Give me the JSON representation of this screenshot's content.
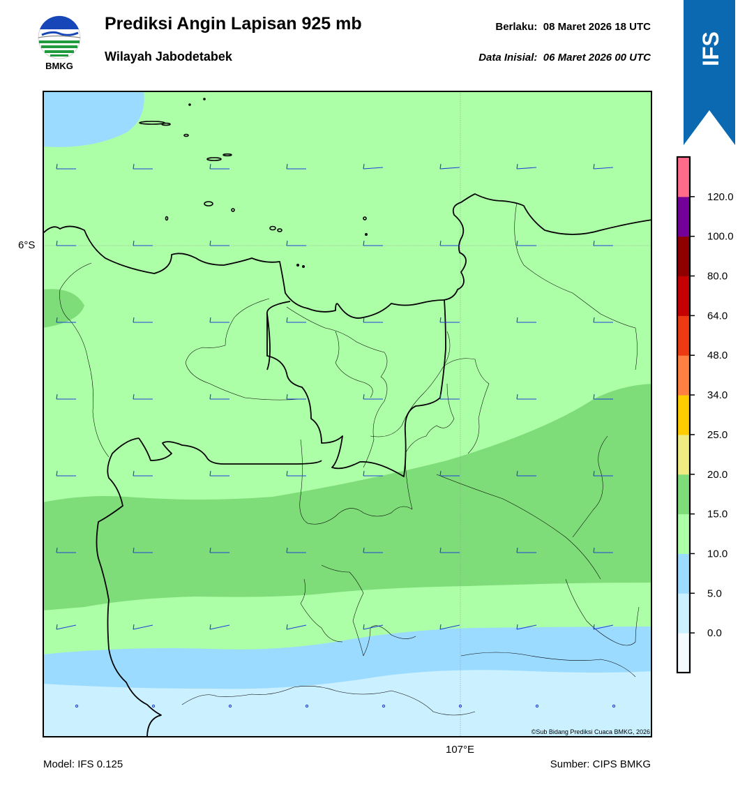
{
  "header": {
    "title": "Prediksi Angin Lapisan 925 mb",
    "subtitle": "Wilayah Jabodetabek",
    "valid_label": "Berlaku:",
    "valid_value": "08 Maret 2026 18 UTC",
    "init_label": "Data Inisial:",
    "init_value": "06 Maret 2026 00 UTC"
  },
  "logo": {
    "icon": "bmkg-logo-icon",
    "text": "BMKG"
  },
  "ribbon": {
    "text": "IFS",
    "color": "#0a69b0"
  },
  "map": {
    "lat_label": "6°S",
    "lon_label": "107°E",
    "copyright": "©Sub Bidang Prediksi Cuaca BMKG, 2026"
  },
  "footer": {
    "model": "Model: IFS 0.125",
    "source": "Sumber: CIPS BMKG"
  },
  "colorbar": {
    "ticks": [
      "0.0",
      "5.0",
      "10.0",
      "15.0",
      "20.0",
      "25.0",
      "34.0",
      "48.0",
      "64.0",
      "80.0",
      "100.0",
      "120.0"
    ],
    "colors": [
      "#f3fbff",
      "#cbf0ff",
      "#9bdbff",
      "#acffa6",
      "#7edd78",
      "#eeeb81",
      "#ffcc00",
      "#ff8040",
      "#ee3a12",
      "#c40000",
      "#8f0000",
      "#74009a",
      "#ff6b8a"
    ]
  }
}
